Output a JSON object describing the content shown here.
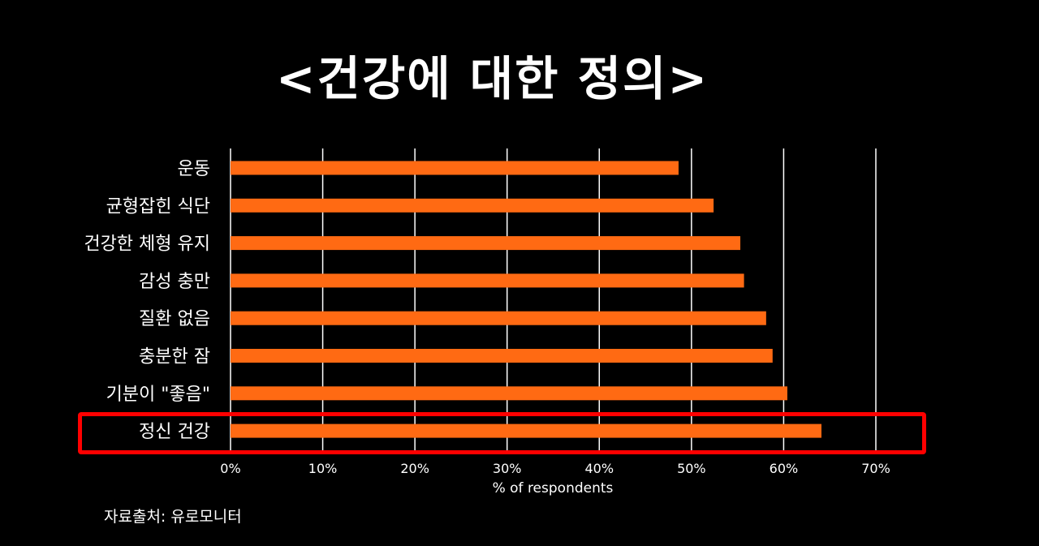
{
  "page": {
    "title": "<건강에 대한 정의>",
    "source_note": "자료출처: 유로모니터"
  },
  "chart_data": {
    "type": "bar",
    "orientation": "horizontal",
    "title": "<건강에 대한 정의>",
    "xlabel": "% of respondents",
    "ylabel": "",
    "categories": [
      "운동",
      "균형잡힌 식단",
      "건강한 체형 유지",
      "감성 충만",
      "질환 없음",
      "충분한 잠",
      "기분이 \"좋음\"",
      "정신 건강"
    ],
    "values": [
      48.6,
      52.4,
      55.3,
      55.7,
      58.1,
      58.8,
      60.4,
      64.1
    ],
    "value_unit": "percent",
    "xlim": [
      0,
      70
    ],
    "xticks": [
      "0%",
      "10%",
      "20%",
      "30%",
      "40%",
      "50%",
      "60%",
      "70%"
    ],
    "grid": "vertical",
    "highlighted_category": "정신 건강",
    "colors": {
      "background": "#000000",
      "bar": "#ff6a13",
      "text": "#ffffff",
      "gridline": "#ffffff",
      "highlight": "#ff0000"
    }
  }
}
